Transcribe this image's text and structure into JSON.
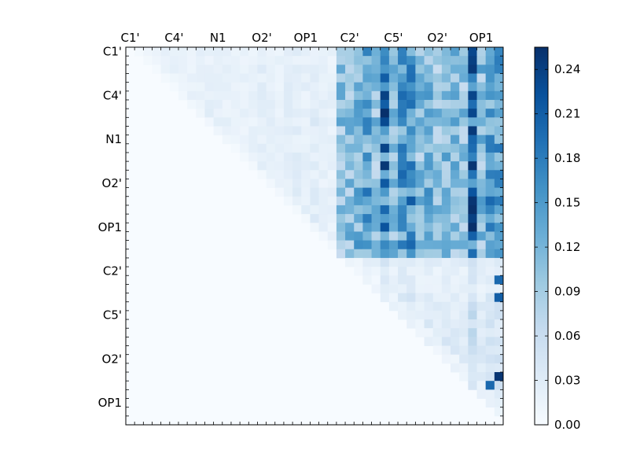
{
  "chart_data": {
    "type": "heatmap",
    "title": "",
    "xlabel": "",
    "ylabel": "",
    "n": 43,
    "x_tick_labels": [
      "C1'",
      "C4'",
      "N1",
      "O2'",
      "OP1",
      "C2'",
      "C5'",
      "O2'",
      "OP1"
    ],
    "y_tick_labels": [
      "C1'",
      "C4'",
      "N1",
      "O2'",
      "OP1",
      "C2'",
      "C5'",
      "O2'",
      "OP1"
    ],
    "tick_label_indices": [
      0,
      5,
      10,
      15,
      20,
      25,
      30,
      35,
      40
    ],
    "colormap": "Blues",
    "colormap_stops": [
      "#f7fbff",
      "#deebf7",
      "#c6dbef",
      "#9ecae1",
      "#6baed6",
      "#4292c6",
      "#2171b5",
      "#08519c",
      "#08306b"
    ],
    "color_range": [
      0.0,
      0.255
    ],
    "colorbar": {
      "tick_values": [
        0.0,
        0.03,
        0.06,
        0.09,
        0.12,
        0.15,
        0.18,
        0.21,
        0.24
      ],
      "tick_labels": [
        "0.00",
        "0.03",
        "0.06",
        "0.09",
        "0.12",
        "0.15",
        "0.18",
        "0.21",
        "0.24"
      ]
    },
    "matrix_note": "upper-triangular; lower triangle and diagonal are 0",
    "row_weights": [
      0.55,
      0.55,
      0.6,
      0.6,
      0.6,
      0.6,
      0.6,
      0.65,
      0.65,
      0.6,
      0.6,
      0.6,
      0.55,
      0.6,
      0.6,
      0.6,
      0.6,
      0.6,
      0.6,
      0.6,
      0.55,
      0.55,
      0.6,
      0.6,
      0.45,
      0.35,
      0.35,
      0.4,
      0.45,
      0.5,
      0.5,
      0.5,
      0.5,
      0.55,
      0.55,
      0.55,
      0.6,
      0.65,
      0.65,
      0.65,
      0.6,
      0.6,
      0.6
    ],
    "col_weights": [
      0,
      0.2,
      0.25,
      0.25,
      0.3,
      0.3,
      0.3,
      0.35,
      0.35,
      0.35,
      0.35,
      0.35,
      0.3,
      0.3,
      0.3,
      0.4,
      0.35,
      0.3,
      0.4,
      0.45,
      0.35,
      0.45,
      0.35,
      0.35,
      0.55,
      0.6,
      0.65,
      0.75,
      0.55,
      1.0,
      0.6,
      0.8,
      0.85,
      0.6,
      0.7,
      0.55,
      0.65,
      0.6,
      0.55,
      1.1,
      0.6,
      0.8,
      0.75
    ],
    "block_weight": 0.22,
    "hot_spots": [
      {
        "row": 1,
        "col": 39,
        "value": 0.24
      },
      {
        "row": 5,
        "col": 39,
        "value": 0.235
      },
      {
        "row": 8,
        "col": 29,
        "value": 0.23
      },
      {
        "row": 9,
        "col": 39,
        "value": 0.245
      },
      {
        "row": 13,
        "col": 39,
        "value": 0.25
      },
      {
        "row": 17,
        "col": 39,
        "value": 0.25
      },
      {
        "row": 19,
        "col": 39,
        "value": 0.24
      },
      {
        "row": 20,
        "col": 29,
        "value": 0.22
      },
      {
        "row": 37,
        "col": 42,
        "value": 0.25
      },
      {
        "row": 26,
        "col": 42,
        "value": 0.2
      },
      {
        "row": 28,
        "col": 42,
        "value": 0.21
      },
      {
        "row": 38,
        "col": 41,
        "value": 0.2
      },
      {
        "row": 3,
        "col": 29,
        "value": 0.21
      },
      {
        "row": 15,
        "col": 29,
        "value": 0.215
      }
    ]
  }
}
